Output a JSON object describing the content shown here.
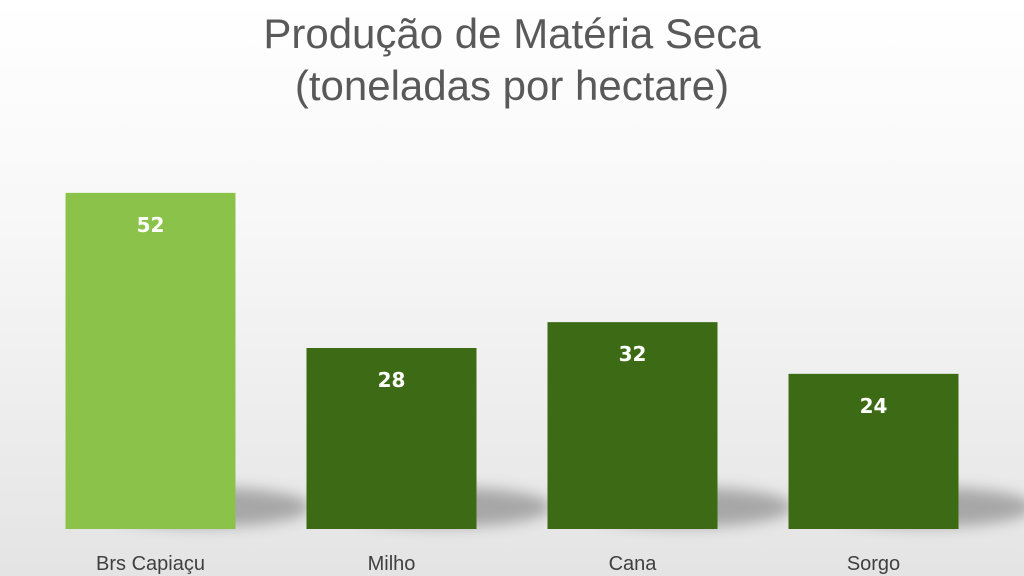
{
  "chart_data": {
    "type": "bar",
    "title": "Produção de Matéria Seca",
    "subtitle": "(toneladas por hectare)",
    "categories": [
      "Brs Capiaçu",
      "Milho",
      "Cana",
      "Sorgo"
    ],
    "series": [
      {
        "values": [
          52,
          28,
          32,
          24
        ]
      }
    ],
    "xlabel": "",
    "ylabel": "",
    "ylim": [
      0,
      56
    ],
    "grid": false,
    "legend": "none",
    "data_labels": true,
    "colors": {
      "highlight": "#8BC34A",
      "bar": "#3D6A14",
      "label": "#FFFFFF"
    },
    "highlight_index": 0
  }
}
